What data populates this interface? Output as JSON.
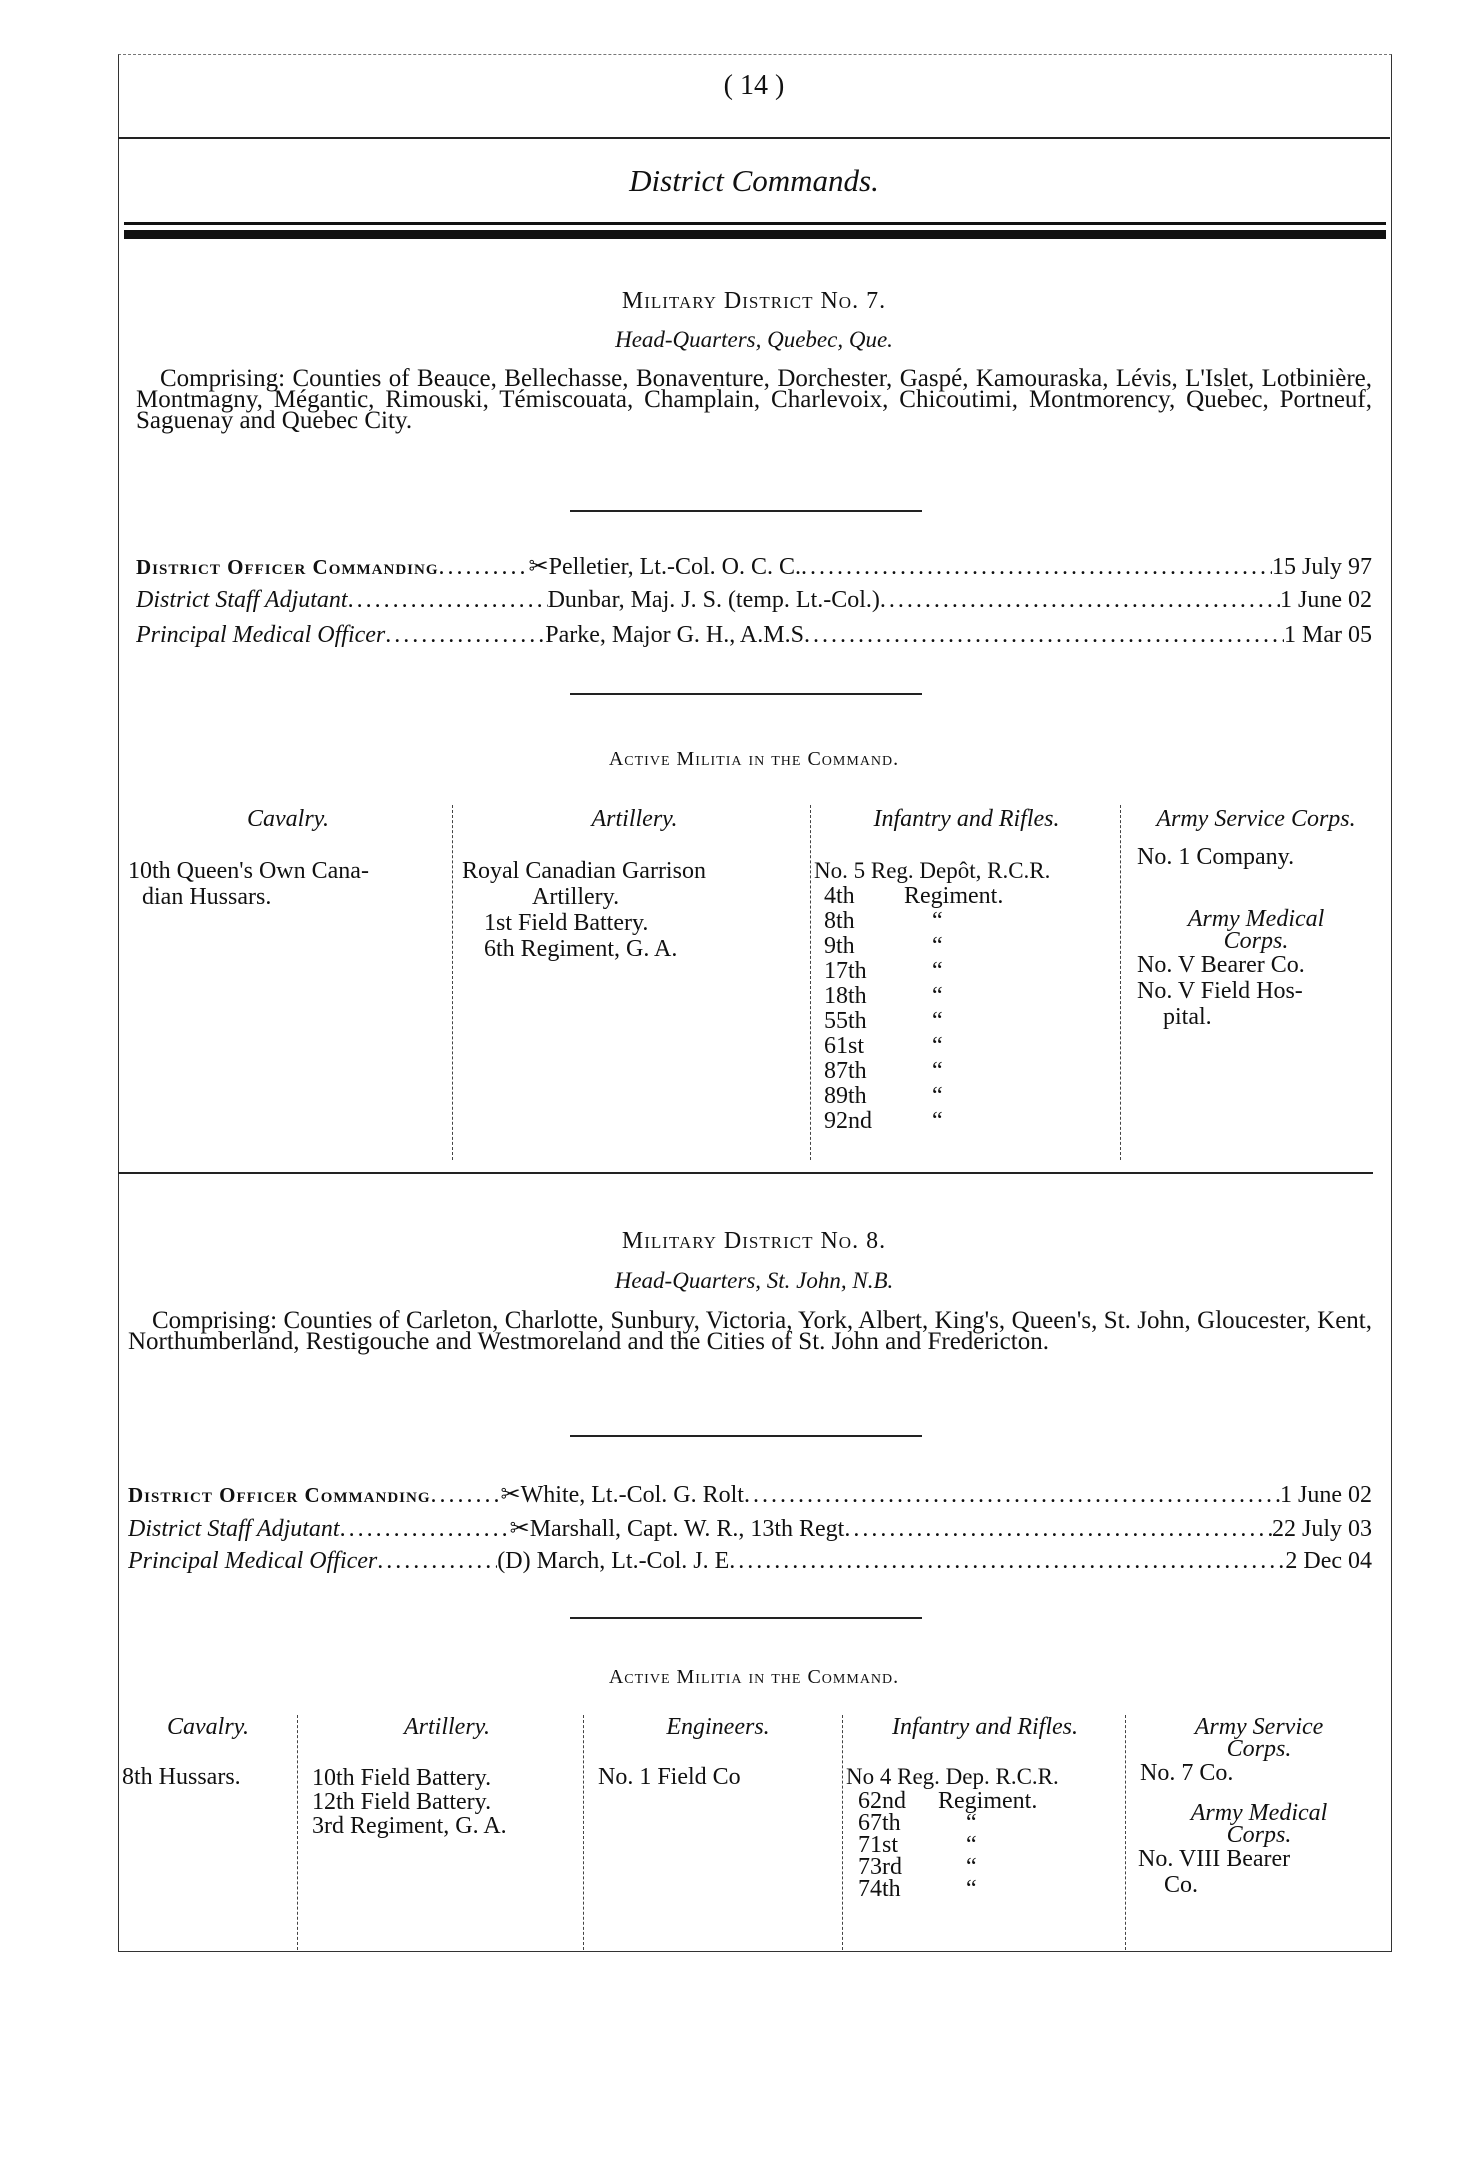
{
  "page_number": "( 14 )",
  "section_title": "District Commands.",
  "districts": [
    {
      "title": "Military District No. 7.",
      "headquarters": "Head-Quarters, Quebec, Que.",
      "comprising": "Comprising: Counties of Beauce, Bellechasse, Bonaventure, Dorchester, Gaspé, Kamouraska, Lévis, L'Islet, Lotbinière, Montmagny, Mégantic, Rimouski, Témiscouata, Champlain, Charlevoix, Chicoutimi, Montmorency, Quebec, Portneuf, Saguenay and Quebec City.",
      "officers": [
        {
          "role": "District Officer Commanding",
          "name": "✂Pelletier, Lt.-Col. O. C. C.",
          "date": "15 July 97"
        },
        {
          "role": "District Staff Adjutant",
          "name": "Dunbar, Maj. J. S. (temp. Lt.-Col.)",
          "date": "1 June 02"
        },
        {
          "role": "Principal Medical Officer",
          "name": "Parke, Major G. H., A.M.S",
          "date": "1 Mar 05"
        }
      ],
      "militia_heading": "Active Militia in the Command.",
      "columns": {
        "cavalry": {
          "header": "Cavalry.",
          "items": [
            "10th Queen's Own Cana-",
            "dian Hussars."
          ]
        },
        "artillery": {
          "header": "Artillery.",
          "items": [
            "Royal Canadian Garrison",
            "Artillery.",
            "1st Field Battery.",
            "6th Regiment, G. A."
          ]
        },
        "infantry": {
          "header": "Infantry and Rifles.",
          "first": "No. 5 Reg. Depôt, R.C.R.",
          "items": [
            [
              "4th",
              "Regiment."
            ],
            [
              "8th",
              "“"
            ],
            [
              "9th",
              "“"
            ],
            [
              "17th",
              "“"
            ],
            [
              "18th",
              "“"
            ],
            [
              "55th",
              "“"
            ],
            [
              "61st",
              "“"
            ],
            [
              "87th",
              "“"
            ],
            [
              "89th",
              "“"
            ],
            [
              "92nd",
              "“"
            ]
          ]
        },
        "service": {
          "header": "Army Service Corps.",
          "items": [
            "No. 1 Company."
          ]
        },
        "medical": {
          "header": "Army Medical Corps.",
          "items": [
            "No. V Bearer Co.",
            "No. V Field Hos-",
            "pital."
          ]
        }
      }
    },
    {
      "title": "Military District No. 8.",
      "headquarters": "Head-Quarters, St. John, N.B.",
      "comprising": "Comprising: Counties of Carleton, Charlotte, Sunbury, Victoria, York, Albert, King's, Queen's, St. John, Gloucester, Kent, Northumberland, Restigouche and Westmoreland and the Cities of St. John and Fredericton.",
      "officers": [
        {
          "role": "District Officer Commanding",
          "name": "✂White, Lt.-Col. G. Rolt",
          "date": "1 June 02"
        },
        {
          "role": "District Staff Adjutant",
          "name": "✂Marshall, Capt. W. R., 13th Regt",
          "date": "22 July 03"
        },
        {
          "role": "Principal Medical Officer",
          "name": "(D) March, Lt.-Col. J. E",
          "date": "2 Dec 04"
        }
      ],
      "militia_heading": "Active Militia in the Command.",
      "columns": {
        "cavalry": {
          "header": "Cavalry.",
          "items": [
            "8th Hussars."
          ]
        },
        "artillery": {
          "header": "Artillery.",
          "items": [
            "10th Field Battery.",
            "12th Field Battery.",
            "3rd Regiment, G. A."
          ]
        },
        "engineers": {
          "header": "Engineers.",
          "items": [
            "No. 1 Field Co"
          ]
        },
        "infantry": {
          "header": "Infantry and Rifles.",
          "first": "No 4 Reg. Dep. R.C.R.",
          "items": [
            [
              "62nd",
              "Regiment."
            ],
            [
              "67th",
              "“"
            ],
            [
              "71st",
              "“"
            ],
            [
              "73rd",
              "“"
            ],
            [
              "74th",
              "“"
            ]
          ]
        },
        "service": {
          "header": "Army Service Corps.",
          "items": [
            "No. 7 Co."
          ]
        },
        "medical": {
          "header": "Army Medical Corps.",
          "items": [
            "No. VIII Bearer",
            "Co."
          ]
        }
      }
    }
  ]
}
